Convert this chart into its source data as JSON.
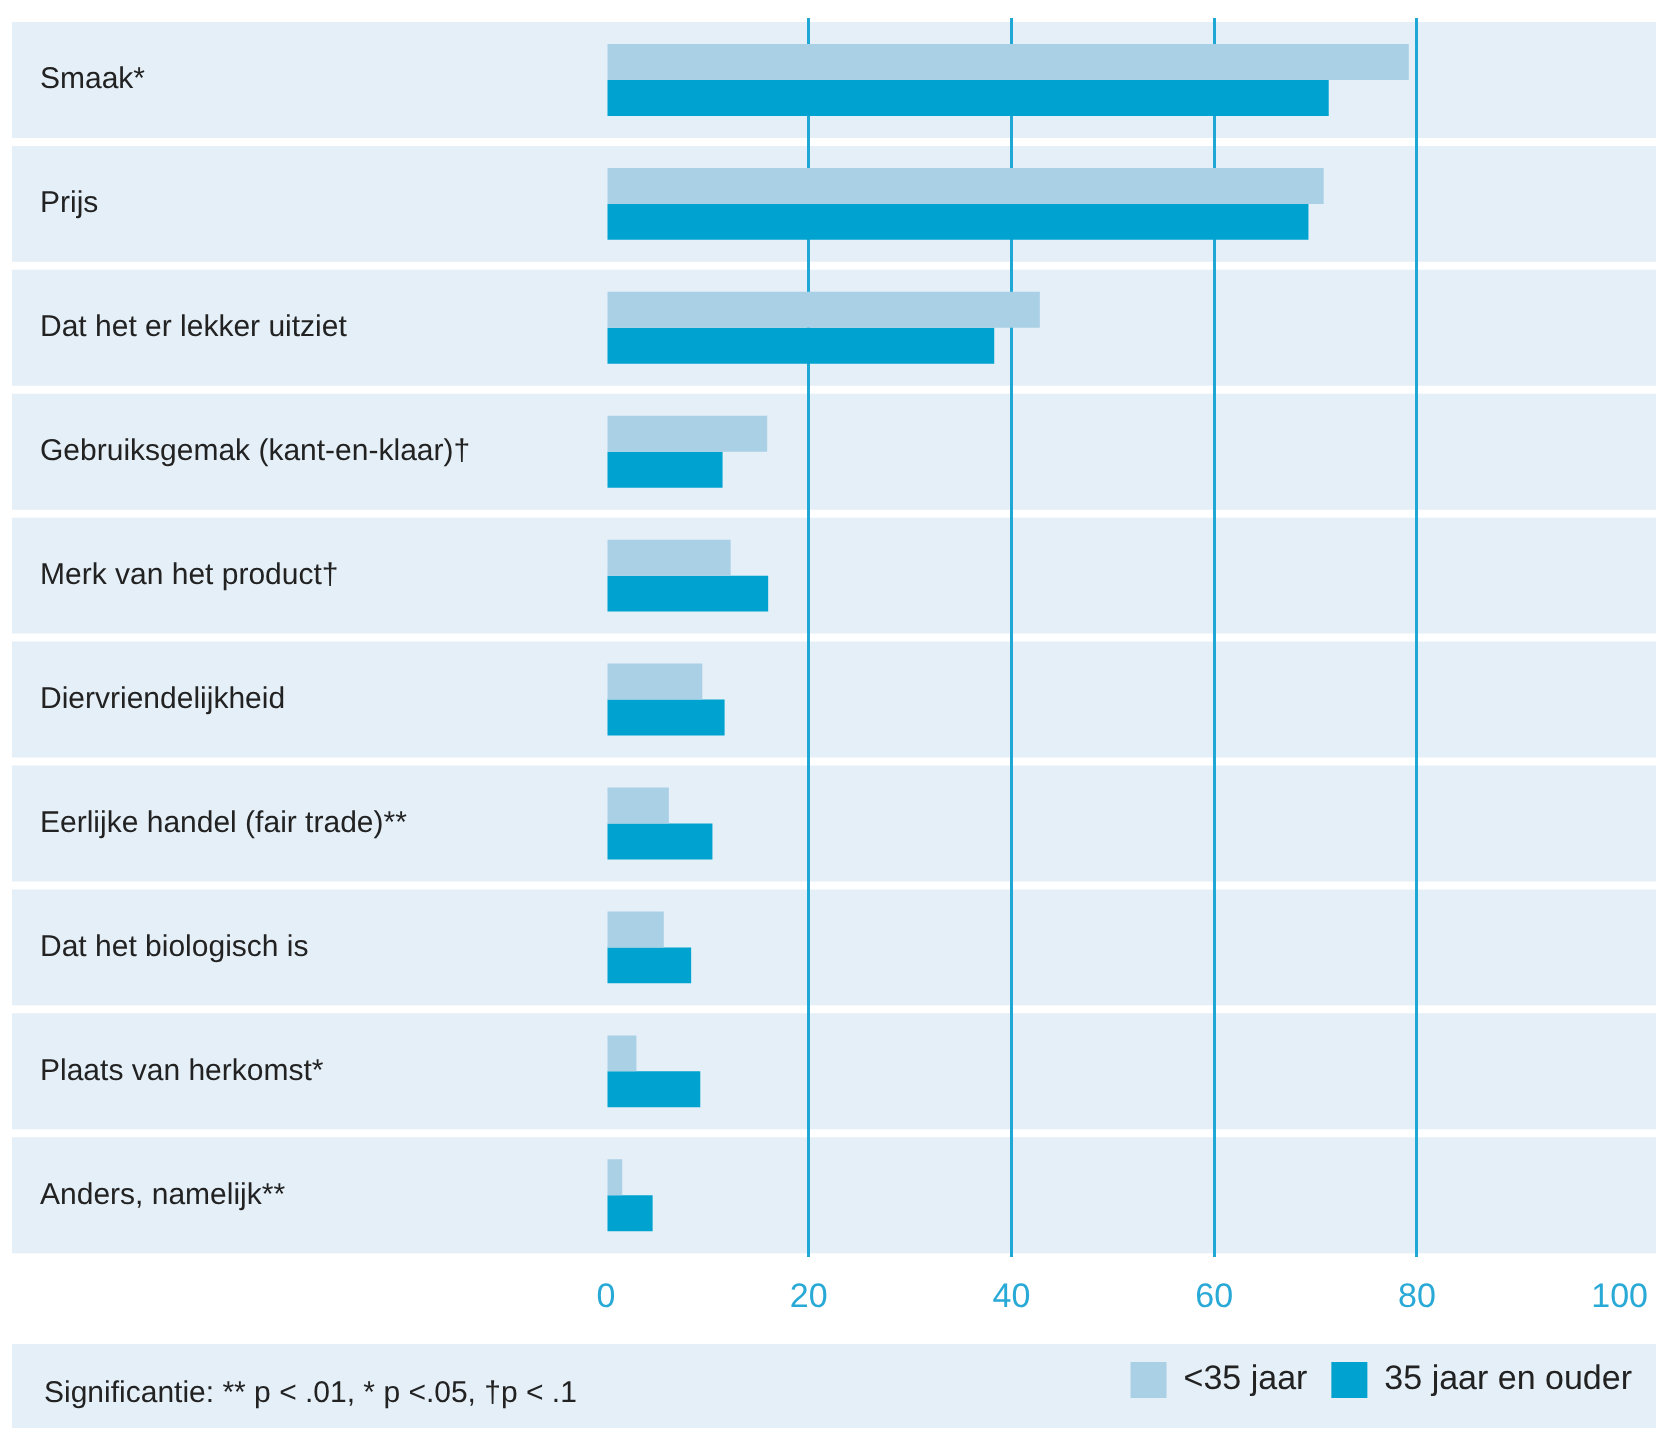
{
  "chart_data": {
    "type": "bar",
    "orientation": "horizontal",
    "categories": [
      "Smaak*",
      "Prijs",
      "Dat het er lekker uitziet",
      "Gebruiksgemak (kant-en-klaar)†",
      "Merk van het product†",
      "Diervriendelijkheid",
      "Eerlijke handel (fair trade)**",
      "Dat het biologisch is",
      "Plaats van herkomst*",
      "Anders, namelijk**"
    ],
    "series": [
      {
        "name": "<35 jaar",
        "color": "#aad0e6",
        "values": [
          79.2,
          70.8,
          42.8,
          15.9,
          12.3,
          9.5,
          6.2,
          5.7,
          3.0,
          1.6
        ]
      },
      {
        "name": "35 jaar en ouder",
        "color": "#00a3cf",
        "values": [
          71.3,
          69.3,
          38.3,
          11.5,
          16.0,
          11.7,
          10.5,
          8.4,
          9.3,
          4.6
        ]
      }
    ],
    "xlim": [
      0,
      100
    ],
    "xticks": [
      0,
      20,
      40,
      60,
      80,
      100
    ],
    "grid": "x",
    "legend": "bottom right",
    "annotations": [
      "Significantie: ** p < .01, * p <.05, †p < .1"
    ]
  }
}
